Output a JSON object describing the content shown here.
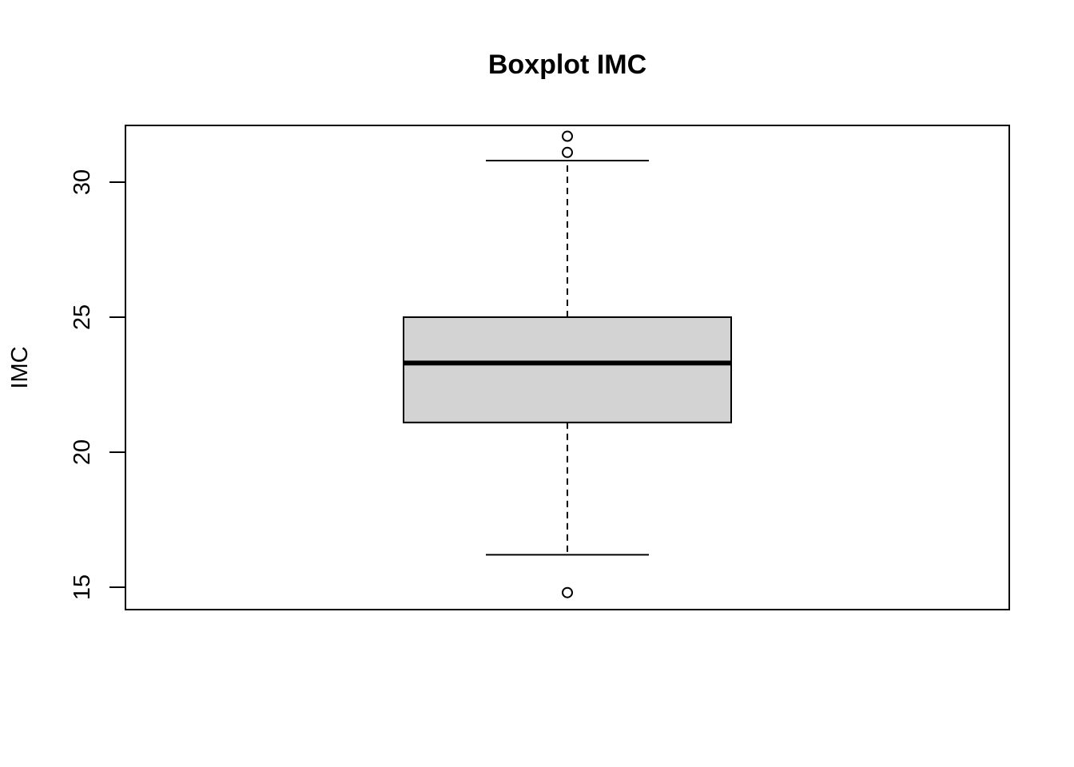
{
  "chart_data": {
    "type": "box",
    "title": "Boxplot IMC",
    "xlabel": "",
    "ylabel": "IMC",
    "ylim": [
      14.17,
      32.1
    ],
    "yticks": [
      15,
      20,
      25,
      30
    ],
    "ytick_labels": [
      "15",
      "20",
      "25",
      "30"
    ],
    "grid": false,
    "box": {
      "lower_whisker": 16.2,
      "q1": 21.1,
      "median": 23.3,
      "q3": 25.0,
      "upper_whisker": 30.8,
      "outliers": [
        31.7,
        31.1,
        14.8
      ]
    },
    "colors": {
      "box_fill": "#d3d3d3",
      "stroke": "#000000",
      "background": "#ffffff"
    }
  }
}
